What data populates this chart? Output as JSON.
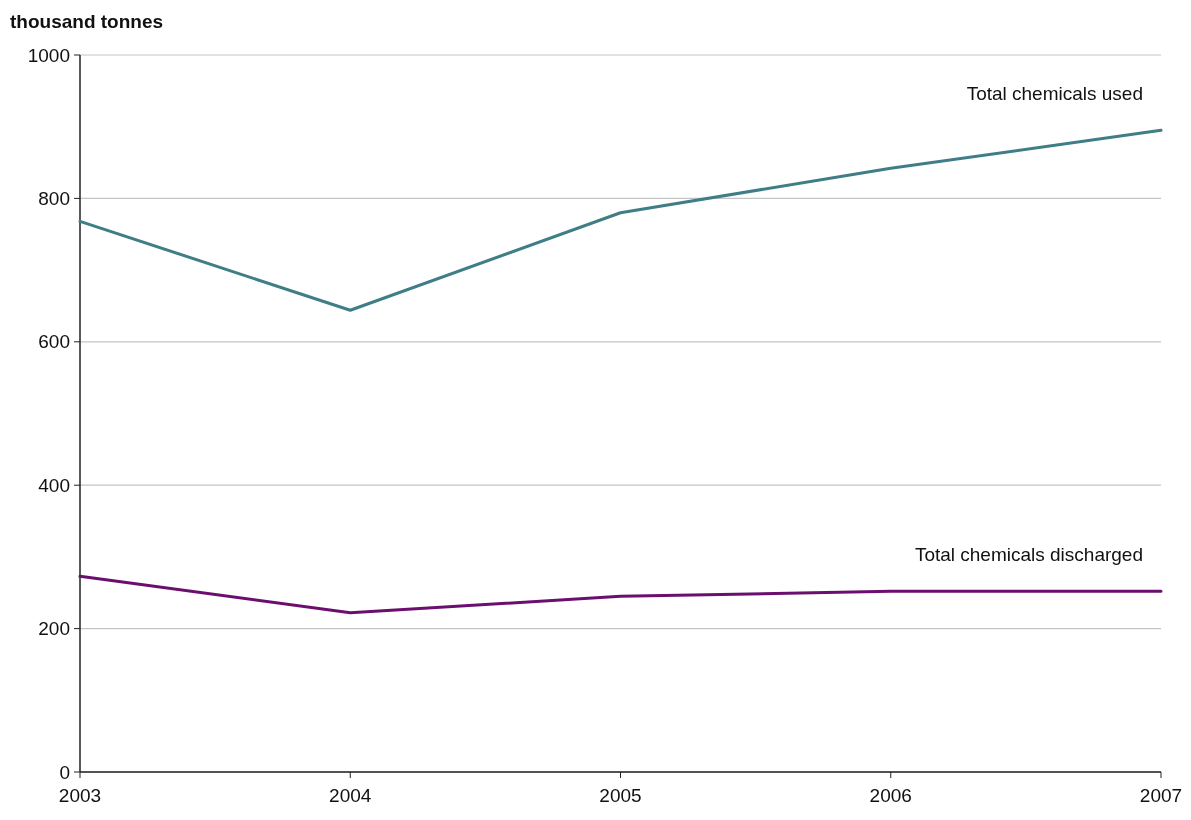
{
  "chart_data": {
    "type": "line",
    "ylabel": "thousand tonnes",
    "x": [
      2003,
      2004,
      2005,
      2006,
      2007
    ],
    "xlim": [
      2003,
      2007
    ],
    "xticks": [
      2003,
      2004,
      2005,
      2006,
      2007
    ],
    "ylim": [
      0,
      1000
    ],
    "yticks": [
      0,
      200,
      400,
      600,
      800,
      1000
    ],
    "grid": "y",
    "marker": "none",
    "line_style": "solid",
    "series": [
      {
        "name": "Total chemicals used",
        "color": "#3f7d87",
        "values": [
          768,
          644,
          780,
          842,
          895
        ]
      },
      {
        "name": "Total chemicals discharged",
        "color": "#6b0f6e",
        "values": [
          273,
          222,
          245,
          252,
          252
        ]
      }
    ]
  }
}
